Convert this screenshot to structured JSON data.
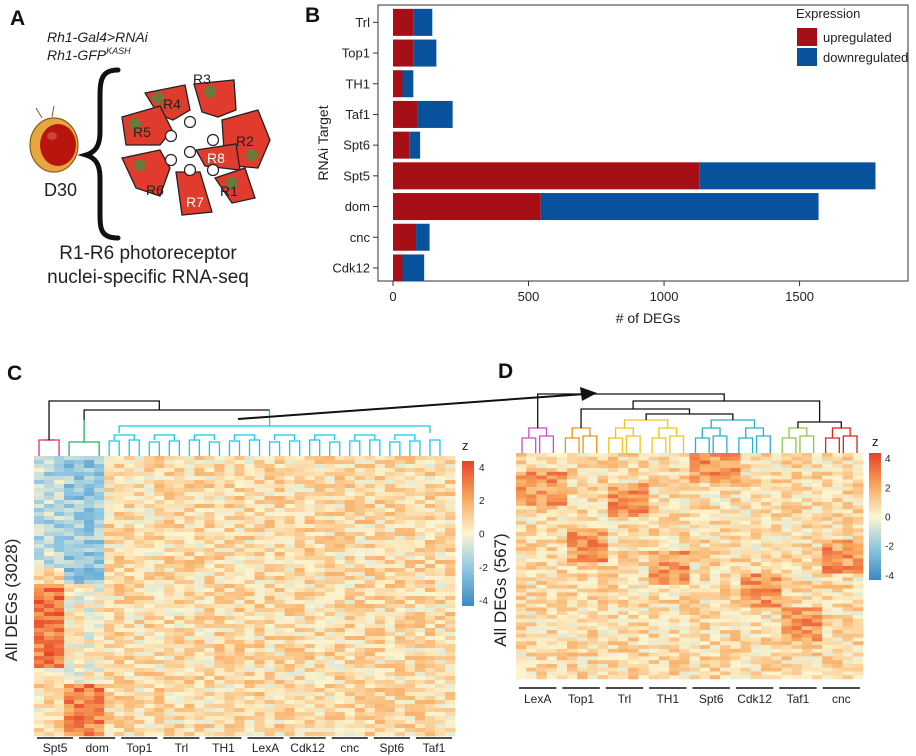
{
  "panels": {
    "a": "A",
    "b": "B",
    "c": "C",
    "d": "D"
  },
  "panel_a": {
    "genotype_line1": "Rh1-Gal4>RNAi",
    "genotype_line2": "Rh1-GFP",
    "genotype_sup": "KASH",
    "age": "D30",
    "cells": [
      "R1",
      "R2",
      "R3",
      "R4",
      "R5",
      "R6",
      "R7",
      "R8"
    ],
    "caption_line1": "R1-R6 photoreceptor",
    "caption_line2": "nuclei-specific RNA-seq",
    "colors": {
      "cell": "#e03b2c",
      "nucleus": "#6b7a3a",
      "eye": "#b8150f",
      "head": "#e8a640"
    }
  },
  "chart_data": [
    {
      "type": "bar",
      "orientation": "horizontal",
      "stacked": true,
      "title": "",
      "xlabel": "# of DEGs",
      "ylabel": "RNAi Target",
      "categories": [
        "Trl",
        "Top1",
        "TH1",
        "Taf1",
        "Spt6",
        "Spt5",
        "dom",
        "cnc",
        "Cdk12"
      ],
      "series": [
        {
          "name": "upregulated",
          "color": "#a50f15",
          "values": [
            75,
            75,
            35,
            90,
            60,
            1130,
            545,
            85,
            35
          ]
        },
        {
          "name": "downregulated",
          "color": "#08519c",
          "values": [
            70,
            85,
            40,
            130,
            40,
            650,
            1025,
            50,
            80
          ]
        }
      ],
      "xlim": [
        0,
        1900
      ],
      "xticks": [
        0,
        500,
        1000,
        1500
      ],
      "legend": {
        "title": "Expression",
        "position": "top-right"
      }
    },
    {
      "type": "heatmap",
      "title": "",
      "ylabel": "All DEGs (3028)",
      "columns": [
        "Spt5",
        "dom",
        "Top1",
        "Trl",
        "TH1",
        "LexA",
        "Cdk12",
        "cnc",
        "Spt6",
        "Taf1"
      ],
      "colorbar": {
        "label": "z",
        "ticks": [
          4,
          2,
          0,
          -2,
          -4
        ]
      },
      "dendrogram_colors": [
        "#e0317a",
        "#1fb56a",
        "#19c8e6"
      ]
    },
    {
      "type": "heatmap",
      "title": "",
      "ylabel": "All DEGs (567)",
      "columns": [
        "LexA",
        "Top1",
        "Trl",
        "TH1",
        "Spt6",
        "Cdk12",
        "Taf1",
        "cnc"
      ],
      "colorbar": {
        "label": "z",
        "ticks": [
          4,
          2,
          0,
          -2,
          -4
        ]
      },
      "dendrogram_colors": [
        "#c94fc4",
        "#f0901a",
        "#f2c21a",
        "#27b0c9",
        "#8cc84b",
        "#e2231a"
      ]
    }
  ]
}
